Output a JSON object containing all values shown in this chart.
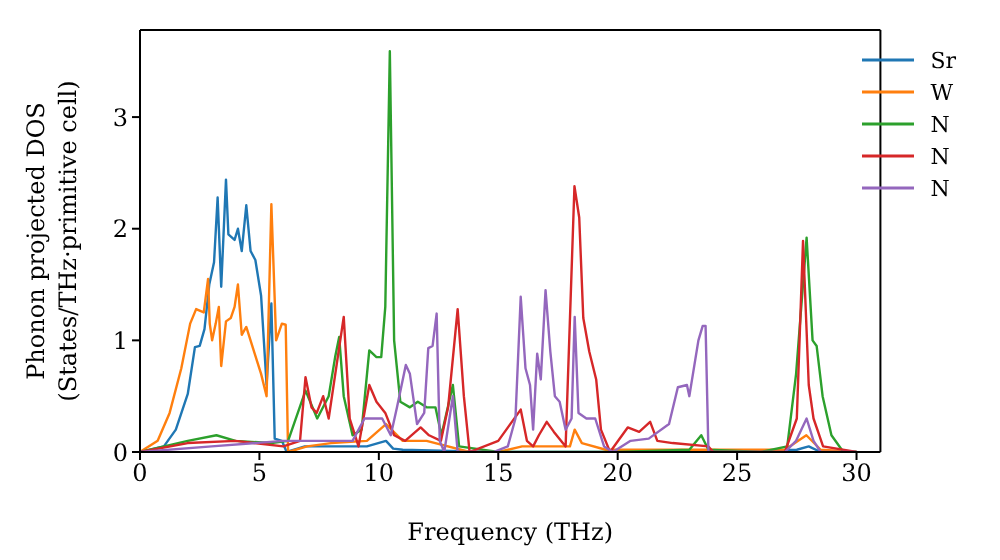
{
  "chart_data": {
    "type": "line",
    "xlabel": "Frequency (THz)",
    "ylabel": "Phonon projected DOS\n(States/THz·primitive cell)",
    "xlim": [
      0,
      31
    ],
    "xticks": [
      0,
      5,
      10,
      15,
      20,
      25,
      30
    ],
    "ylim": [
      0,
      3.78
    ],
    "yticks": [
      0,
      1,
      2,
      3
    ],
    "legend": "top right",
    "marker": "none",
    "line_style": "solid",
    "series": [
      {
        "name": "Sr",
        "color": "#1f77b4",
        "x": [
          0,
          1,
          1.5,
          2,
          2.3,
          2.5,
          2.7,
          2.9,
          3.1,
          3.25,
          3.4,
          3.6,
          3.7,
          3.96,
          4.1,
          4.26,
          4.45,
          4.63,
          4.83,
          5.07,
          5.3,
          5.5,
          5.64,
          5.94,
          6.14,
          6.9,
          8,
          9.5,
          10.3,
          10.6,
          11,
          13,
          15,
          20,
          25,
          27.5,
          28,
          28.5,
          30
        ],
        "values": [
          0,
          0.05,
          0.2,
          0.52,
          0.94,
          0.95,
          1.1,
          1.5,
          1.7,
          2.28,
          1.48,
          2.44,
          1.95,
          1.9,
          2.0,
          1.8,
          2.21,
          1.8,
          1.72,
          1.4,
          0.6,
          1.33,
          0.12,
          0.1,
          0,
          0.05,
          0.05,
          0.05,
          0.1,
          0.03,
          0.02,
          0.01,
          0,
          0,
          0,
          0.02,
          0.05,
          0,
          0
        ]
      },
      {
        "name": "W",
        "color": "#ff7f0e",
        "x": [
          0,
          0.74,
          1.24,
          1.73,
          2.1,
          2.35,
          2.67,
          2.85,
          2.92,
          3.02,
          3.17,
          3.3,
          3.4,
          3.6,
          3.8,
          3.96,
          4.1,
          4.26,
          4.45,
          4.7,
          5.07,
          5.3,
          5.5,
          5.7,
          5.94,
          6.1,
          6.2,
          7,
          8,
          9.5,
          10.3,
          11,
          12,
          13.8,
          15,
          16,
          17,
          18,
          18.2,
          18.5,
          19.5,
          21,
          24,
          27,
          27.9,
          28.5,
          30
        ],
        "values": [
          0,
          0.1,
          0.35,
          0.75,
          1.15,
          1.28,
          1.25,
          1.55,
          1.15,
          1.0,
          1.15,
          1.3,
          0.77,
          1.17,
          1.2,
          1.3,
          1.5,
          1.05,
          1.12,
          0.95,
          0.7,
          0.5,
          2.22,
          1.0,
          1.15,
          1.14,
          0,
          0.05,
          0.08,
          0.1,
          0.25,
          0.1,
          0.1,
          0,
          0,
          0.05,
          0.05,
          0.05,
          0.2,
          0.08,
          0.02,
          0.02,
          0.02,
          0.02,
          0.15,
          0.02,
          0
        ]
      },
      {
        "name": "N",
        "color": "#2ca02c",
        "x": [
          0,
          2,
          3.2,
          4,
          5.5,
          6.2,
          6.93,
          7.42,
          7.9,
          8.17,
          8.34,
          8.53,
          8.9,
          9.28,
          9.6,
          9.9,
          10.1,
          10.27,
          10.46,
          10.64,
          10.9,
          11.3,
          11.63,
          12.0,
          12.37,
          12.62,
          13.1,
          13.36,
          15,
          20,
          23,
          23.5,
          23.8,
          26,
          27.1,
          27.47,
          27.91,
          28.16,
          28.33,
          28.58,
          28.95,
          29.45,
          30
        ],
        "values": [
          0,
          0.1,
          0.15,
          0.1,
          0.08,
          0.1,
          0.55,
          0.3,
          0.5,
          0.85,
          1.03,
          0.5,
          0.15,
          0.2,
          0.91,
          0.85,
          0.85,
          1.3,
          3.59,
          1.0,
          0.45,
          0.4,
          0.45,
          0.4,
          0.4,
          0.15,
          0.6,
          0.05,
          0,
          0,
          0.02,
          0.15,
          0.02,
          0,
          0.05,
          0.7,
          1.92,
          1.0,
          0.95,
          0.5,
          0.15,
          0,
          0
        ]
      },
      {
        "name": "N",
        "color": "#d62728",
        "x": [
          0,
          2,
          4,
          6,
          6.7,
          6.93,
          7.18,
          7.4,
          7.67,
          7.9,
          8.53,
          8.78,
          9.15,
          9.6,
          9.9,
          10.27,
          10.64,
          11.1,
          11.75,
          12.1,
          12.6,
          12.9,
          13.3,
          13.56,
          13.8,
          15,
          15.94,
          16.2,
          16.46,
          16.7,
          17.03,
          17.33,
          17.82,
          18.19,
          18.39,
          18.56,
          18.81,
          19.1,
          19.3,
          19.68,
          20.42,
          20.9,
          21.36,
          21.66,
          22.3,
          23.8,
          24,
          27,
          27.5,
          27.76,
          28.0,
          28.2,
          28.6,
          30
        ],
        "values": [
          0,
          0.08,
          0.1,
          0.05,
          0.1,
          0.67,
          0.4,
          0.35,
          0.5,
          0.3,
          1.21,
          0.3,
          0.05,
          0.6,
          0.45,
          0.35,
          0.15,
          0.1,
          0.22,
          0.15,
          0.1,
          0.4,
          1.28,
          0.5,
          0,
          0.1,
          0.38,
          0.1,
          0.05,
          0.15,
          0.27,
          0.18,
          0.05,
          2.38,
          2.1,
          1.2,
          0.9,
          0.65,
          0.2,
          0,
          0.22,
          0.18,
          0.27,
          0.1,
          0.08,
          0.05,
          0,
          0,
          0.3,
          1.89,
          0.6,
          0.3,
          0.05,
          0
        ]
      },
      {
        "name": "N",
        "color": "#9467bd",
        "x": [
          0,
          3,
          6,
          7.4,
          8.9,
          9.4,
          10.14,
          10.5,
          10.76,
          11.13,
          11.3,
          11.6,
          11.9,
          12.07,
          12.25,
          12.42,
          12.55,
          12.74,
          13.1,
          13.3,
          14.8,
          15.4,
          15.72,
          15.94,
          16.14,
          16.33,
          16.46,
          16.63,
          16.78,
          16.98,
          17.18,
          17.37,
          17.57,
          17.82,
          18.07,
          18.2,
          18.36,
          18.69,
          19.06,
          19.43,
          19.8,
          20.54,
          21.3,
          22.15,
          22.52,
          22.9,
          23.0,
          23.38,
          23.56,
          23.68,
          23.8,
          27,
          27.47,
          27.91,
          28.2,
          28.5,
          30
        ],
        "values": [
          0,
          0.05,
          0.1,
          0.1,
          0.1,
          0.3,
          0.3,
          0.15,
          0.4,
          0.78,
          0.7,
          0.25,
          0.35,
          0.93,
          0.95,
          1.24,
          0.1,
          0,
          0.5,
          0,
          0,
          0.05,
          0.3,
          1.39,
          0.75,
          0.6,
          0.2,
          0.88,
          0.65,
          1.45,
          0.9,
          0.5,
          0.45,
          0.2,
          0.3,
          1.21,
          0.35,
          0.3,
          0.3,
          0.05,
          0,
          0.1,
          0.12,
          0.25,
          0.58,
          0.6,
          0.5,
          1.0,
          1.13,
          1.13,
          0,
          0,
          0.1,
          0.3,
          0.1,
          0,
          0
        ]
      }
    ]
  }
}
